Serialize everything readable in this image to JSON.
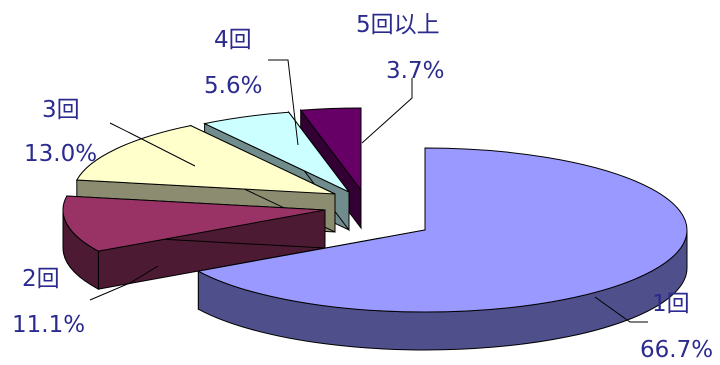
{
  "chart_data": {
    "type": "pie",
    "style": "3d-exploded",
    "title": "",
    "legend": "none",
    "slices": [
      {
        "category": "1回",
        "percent_label": "66.7%",
        "value": 66.7,
        "color": "#9999ff",
        "side_color": "#4f4f8c"
      },
      {
        "category": "2回",
        "percent_label": "11.1%",
        "value": 11.1,
        "color": "#993366",
        "side_color": "#4d1a33"
      },
      {
        "category": "3回",
        "percent_label": "13.0%",
        "value": 13.0,
        "color": "#ffffcc",
        "side_color": "#8c8c70"
      },
      {
        "category": "4回",
        "percent_label": "5.6%",
        "value": 5.6,
        "color": "#ccffff",
        "side_color": "#708c8c"
      },
      {
        "category": "5回以上",
        "percent_label": "3.7%",
        "value": 3.7,
        "color": "#660066",
        "side_color": "#330033"
      }
    ]
  }
}
